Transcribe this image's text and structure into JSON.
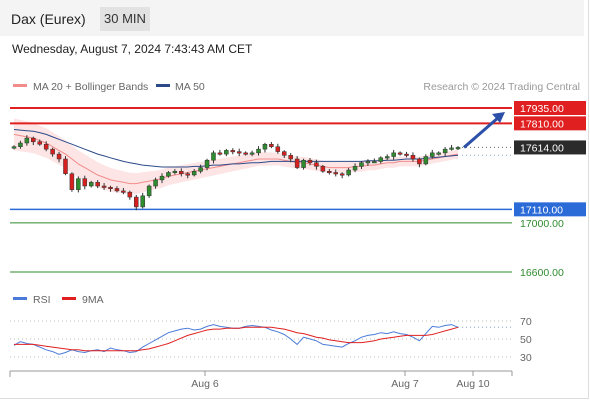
{
  "header": {
    "instrument": "Dax (Eurex)",
    "timeframe": "30 MIN",
    "timestamp": "Wednesday, August 7, 2024 7:43:43 AM CET"
  },
  "chart_data": [
    {
      "type": "line",
      "title": "",
      "legend": [
        {
          "name": "MA 20 + Bollinger Bands",
          "color": "#f28b8b"
        },
        {
          "name": "MA 50",
          "color": "#2c4a8a"
        }
      ],
      "source": "Research © 2024 Trading Central",
      "ylim": [
        16550,
        18000
      ],
      "x_ticks": [
        "Aug 6",
        "Aug 7",
        "Aug 10"
      ],
      "last_price": "17614.00",
      "levels": [
        {
          "label": "17935.00",
          "value": 17935,
          "color": "#e02020",
          "style": "resistance"
        },
        {
          "label": "17810.00",
          "value": 17810,
          "color": "#e02020",
          "style": "resistance"
        },
        {
          "label": "17110.00",
          "value": 17110,
          "color": "#2a6bd8",
          "style": "pivot"
        },
        {
          "label": "17000.00",
          "value": 17000,
          "color": "#2e8b2e",
          "style": "support"
        },
        {
          "label": "16600.00",
          "value": 16600,
          "color": "#2e8b2e",
          "style": "support"
        }
      ],
      "series": [
        {
          "name": "Price",
          "values": [
            17620,
            17650,
            17690,
            17660,
            17640,
            17600,
            17560,
            17520,
            17400,
            17270,
            17360,
            17300,
            17330,
            17300,
            17290,
            17280,
            17260,
            17250,
            17210,
            17130,
            17220,
            17300,
            17350,
            17380,
            17410,
            17420,
            17400,
            17390,
            17420,
            17450,
            17510,
            17570,
            17560,
            17590,
            17580,
            17570,
            17560,
            17570,
            17600,
            17640,
            17620,
            17580,
            17550,
            17520,
            17450,
            17510,
            17490,
            17460,
            17420,
            17410,
            17400,
            17390,
            17430,
            17460,
            17490,
            17500,
            17500,
            17530,
            17540,
            17570,
            17560,
            17550,
            17520,
            17480,
            17540,
            17570,
            17570,
            17600,
            17610,
            17614
          ]
        },
        {
          "name": "MA 20",
          "values": [
            17720,
            17710,
            17700,
            17690,
            17670,
            17650,
            17620,
            17590,
            17560,
            17520,
            17480,
            17450,
            17420,
            17390,
            17370,
            17350,
            17340,
            17330,
            17320,
            17320,
            17330,
            17340,
            17350,
            17360,
            17380,
            17390,
            17400,
            17410,
            17420,
            17430,
            17440,
            17450,
            17460,
            17470,
            17480,
            17490,
            17500,
            17510,
            17520,
            17520,
            17520,
            17520,
            17510,
            17500,
            17490,
            17490,
            17480,
            17470,
            17460,
            17450,
            17450,
            17450,
            17450,
            17460,
            17460,
            17470,
            17470,
            17480,
            17490,
            17490,
            17500,
            17500,
            17500,
            17500,
            17510,
            17520,
            17530,
            17540,
            17550,
            17560
          ]
        },
        {
          "name": "MA 50",
          "values": [
            17760,
            17755,
            17750,
            17745,
            17735,
            17720,
            17700,
            17680,
            17660,
            17640,
            17620,
            17600,
            17580,
            17560,
            17545,
            17530,
            17515,
            17500,
            17490,
            17480,
            17470,
            17465,
            17460,
            17455,
            17455,
            17455,
            17455,
            17455,
            17460,
            17460,
            17465,
            17470,
            17470,
            17475,
            17480,
            17480,
            17485,
            17490,
            17490,
            17495,
            17500,
            17500,
            17500,
            17500,
            17500,
            17500,
            17500,
            17500,
            17500,
            17500,
            17500,
            17500,
            17500,
            17500,
            17500,
            17505,
            17505,
            17505,
            17510,
            17510,
            17515,
            17520,
            17520,
            17520,
            17525,
            17530,
            17535,
            17540,
            17545,
            17550
          ]
        }
      ]
    },
    {
      "type": "line",
      "title": "",
      "legend": [
        {
          "name": "RSI",
          "color": "#4a7bd8"
        },
        {
          "name": "9MA",
          "color": "#e02020"
        }
      ],
      "ylim": [
        20,
        80
      ],
      "y_ticks": [
        70,
        50,
        30
      ],
      "series": [
        {
          "name": "RSI",
          "values": [
            43,
            47,
            45,
            44,
            41,
            38,
            36,
            33,
            35,
            38,
            36,
            35,
            37,
            38,
            36,
            40,
            38,
            37,
            35,
            36,
            41,
            45,
            49,
            53,
            57,
            59,
            61,
            62,
            60,
            61,
            64,
            66,
            64,
            63,
            62,
            62,
            64,
            65,
            64,
            63,
            60,
            58,
            55,
            50,
            44,
            52,
            50,
            48,
            44,
            43,
            42,
            41,
            45,
            48,
            52,
            54,
            55,
            57,
            56,
            58,
            56,
            55,
            52,
            48,
            56,
            64,
            63,
            65,
            66,
            63
          ]
        },
        {
          "name": "9MA",
          "values": [
            44,
            44,
            44,
            44,
            43,
            42,
            41,
            40,
            39,
            38,
            38,
            37,
            37,
            37,
            37,
            37,
            37,
            37,
            37,
            37,
            38,
            39,
            41,
            43,
            45,
            48,
            51,
            54,
            56,
            58,
            60,
            61,
            61,
            62,
            62,
            62,
            63,
            63,
            63,
            63,
            63,
            62,
            61,
            59,
            57,
            56,
            54,
            52,
            51,
            49,
            48,
            47,
            46,
            46,
            46,
            47,
            48,
            50,
            51,
            52,
            53,
            54,
            54,
            54,
            54,
            55,
            57,
            59,
            61,
            63
          ]
        }
      ]
    }
  ]
}
